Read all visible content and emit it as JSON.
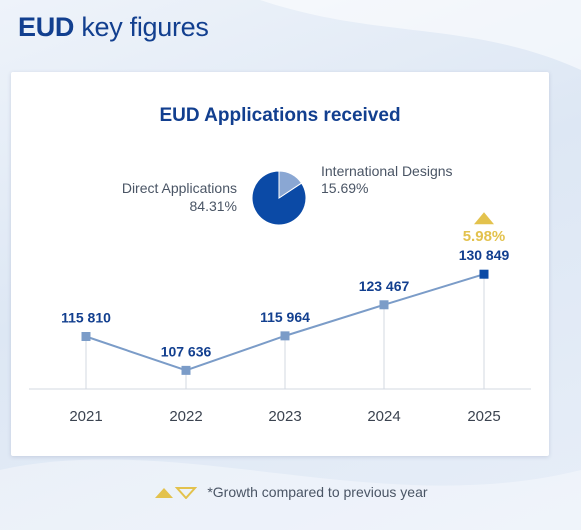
{
  "header": {
    "title_bold": "EUD",
    "title_rest": "key figures"
  },
  "colors": {
    "primary": "#123f8f",
    "accent": "#0b4aa6",
    "light": "#8aa7d3",
    "gold": "#e3c24d",
    "line": "#7b9cc8"
  },
  "chart_data": [
    {
      "type": "pie",
      "title": "EUD Applications received",
      "slices": [
        {
          "label": "Direct Applications",
          "value": 84.31,
          "display": "84.31%"
        },
        {
          "label": "International Designs",
          "value": 15.69,
          "display": "15.69%"
        }
      ]
    },
    {
      "type": "line",
      "categories": [
        "2021",
        "2022",
        "2023",
        "2024",
        "2025"
      ],
      "values": [
        115810,
        107636,
        115964,
        123467,
        130849
      ],
      "value_labels": [
        "115 810",
        "107 636",
        "115 964",
        "123 467",
        "130 849"
      ],
      "growth": {
        "category": "2025",
        "label": "5.98%",
        "direction": "up"
      }
    }
  ],
  "footnote": {
    "text": "*Growth compared to previous year"
  }
}
